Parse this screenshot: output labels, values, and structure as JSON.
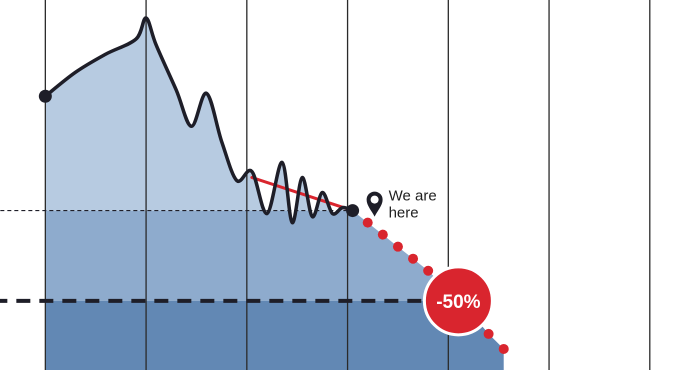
{
  "chart_data": {
    "type": "area",
    "title": "",
    "xlabel": "",
    "ylabel": "",
    "grid": true,
    "colors": {
      "line": "#1e1e28",
      "projection": "#d9252e",
      "fill_light": "#b7cbe1",
      "fill_mid": "#8eabcd",
      "fill_dark": "#6288b4",
      "grid": "#2a2a2a",
      "reference_line": "#1e1e28"
    },
    "series": [
      {
        "name": "",
        "style": "solid",
        "x": [
          0,
          0.3,
          0.6,
          0.9,
          1.0,
          1.1,
          1.3,
          1.45,
          1.6,
          1.75,
          1.9,
          2.05,
          2.2,
          2.35,
          2.45,
          2.55,
          2.65,
          2.75,
          2.85,
          2.95,
          3.05
        ],
        "y": [
          67,
          75,
          81,
          86,
          93,
          84,
          69,
          57,
          68,
          52,
          39,
          42,
          28,
          45,
          25,
          40,
          27,
          35,
          28,
          30,
          29
        ]
      },
      {
        "name": "",
        "style": "dotted",
        "x": [
          3.05,
          3.2,
          3.35,
          3.5,
          3.65,
          3.8,
          3.95,
          4.1,
          4.25,
          4.4,
          4.55
        ],
        "y": [
          29,
          25,
          21,
          17,
          13,
          9,
          4,
          -1,
          -6,
          -12,
          -17
        ]
      },
      {
        "name": "",
        "style": "trend",
        "x": [
          2.05,
          3.05
        ],
        "y": [
          40,
          29
        ]
      }
    ],
    "reference_lines": [
      {
        "y": 29,
        "style": "thin-dashed"
      },
      {
        "y": -1,
        "style": "thick-dashed"
      }
    ],
    "xlim": [
      -0.45,
      6.27
    ],
    "ylim": [
      -24,
      99
    ],
    "markers": [
      {
        "x": 0,
        "y": 67
      },
      {
        "x": 3.05,
        "y": 29
      }
    ],
    "annotations": [
      {
        "text": "We are here",
        "x": 3.05,
        "y": 29,
        "icon": "location-pin-icon"
      },
      {
        "text": "-50%",
        "x": 4.1,
        "y": -1,
        "style": "badge"
      }
    ]
  }
}
